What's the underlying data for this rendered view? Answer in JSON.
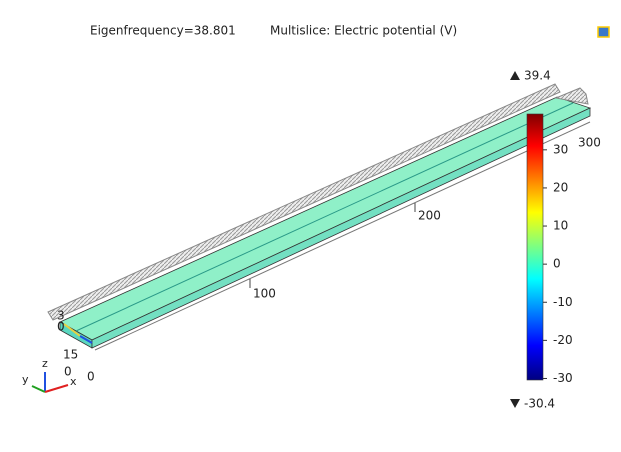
{
  "title": {
    "eigenfrequency": "Eigenfrequency=38.801",
    "plot": "Multislice: Electric potential (V)"
  },
  "colorbar": {
    "max": 39.4,
    "min": -30.4,
    "ticks": [
      30,
      20,
      10,
      0,
      -10,
      -20,
      -30
    ]
  },
  "axis_labels": {
    "a": "100",
    "b": "200",
    "c": "300"
  },
  "edge_labels": {
    "a": "3",
    "b": "0",
    "c": "15",
    "d": "0",
    "e": "0"
  },
  "triad": {
    "x": "x",
    "y": "y",
    "z": "z"
  }
}
